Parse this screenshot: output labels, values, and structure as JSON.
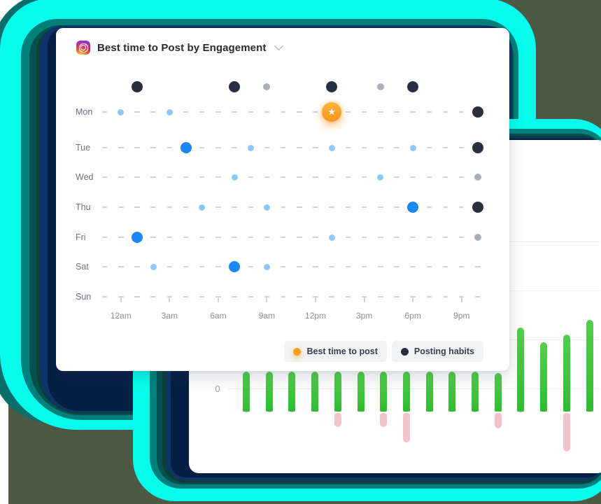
{
  "palette": {
    "page_backdrop": "#4C5A44",
    "glow_cyan": "#09FBEE",
    "glow_teal": "#00807C",
    "glow_dark_teal": "#05514F",
    "glow_dark_green": "#0C3F38",
    "glow_navy": "#10356A",
    "glow_deep_navy": "#081F44",
    "card_background": "#ffffff",
    "dot_light_blue": "#8FC7FA",
    "dot_bright_blue": "#1B87F5",
    "dot_dark_navy": "#272E3F",
    "dot_gray": "#A9B0B8",
    "dash_gray": "#CBD3DB",
    "star_orange": "#F7941D",
    "bar_green": "#3DC13C",
    "bar_pink": "#F3C3CD"
  },
  "main_card": {
    "header": {
      "icon": "instagram-icon",
      "title": "Best time to Post by Engagement",
      "dropdown_icon": "chevron-down-icon"
    },
    "legend": [
      {
        "icon": "orange-dot-icon",
        "icon_color": "#F9A21F",
        "label": "Best time to post"
      },
      {
        "icon": "navy-dot-icon",
        "icon_color": "#272E3F",
        "label": "Posting habits"
      }
    ]
  },
  "chart_data": [
    {
      "type": "scatter",
      "title": "Best time to Post by Engagement",
      "x_axis": "hour of day, 24 hourly slots",
      "y_axis": "day of week",
      "x_ticks": [
        "12am",
        "3am",
        "6am",
        "9am",
        "12pm",
        "3pm",
        "6pm",
        "9pm"
      ],
      "x_tick_slots": [
        1,
        4,
        7,
        10,
        13,
        16,
        19,
        22
      ],
      "slots_per_row": 24,
      "dot_types": {
        "light": "small light-blue engagement dot",
        "blue": "large bright-blue high-engagement dot",
        "dark": "large dark-navy posting-habit dot",
        "gray": "small gray posting-habit dot",
        "star": "orange star badge = best time to post"
      },
      "rows": [
        {
          "label": "",
          "name": "posting-habits-row",
          "dashes": false,
          "dots": [
            {
              "slot": 2,
              "type": "dark"
            },
            {
              "slot": 8,
              "type": "dark"
            },
            {
              "slot": 10,
              "type": "gray"
            },
            {
              "slot": 14,
              "type": "dark"
            },
            {
              "slot": 17,
              "type": "gray"
            },
            {
              "slot": 19,
              "type": "dark"
            }
          ]
        },
        {
          "label": "Mon",
          "dashes": true,
          "dots": [
            {
              "slot": 1,
              "type": "light"
            },
            {
              "slot": 4,
              "type": "light"
            },
            {
              "slot": 14,
              "type": "star"
            },
            {
              "slot": 23,
              "type": "dark"
            }
          ]
        },
        {
          "label": "Tue",
          "dashes": true,
          "dots": [
            {
              "slot": 5,
              "type": "blue"
            },
            {
              "slot": 9,
              "type": "light"
            },
            {
              "slot": 14,
              "type": "light"
            },
            {
              "slot": 19,
              "type": "light"
            },
            {
              "slot": 23,
              "type": "dark"
            }
          ]
        },
        {
          "label": "Wed",
          "dashes": true,
          "dots": [
            {
              "slot": 8,
              "type": "light"
            },
            {
              "slot": 17,
              "type": "light"
            },
            {
              "slot": 23,
              "type": "gray"
            }
          ]
        },
        {
          "label": "Thu",
          "dashes": true,
          "dots": [
            {
              "slot": 6,
              "type": "light"
            },
            {
              "slot": 10,
              "type": "light"
            },
            {
              "slot": 19,
              "type": "blue"
            },
            {
              "slot": 23,
              "type": "dark"
            }
          ]
        },
        {
          "label": "Fri",
          "dashes": true,
          "dots": [
            {
              "slot": 2,
              "type": "blue"
            },
            {
              "slot": 14,
              "type": "light"
            },
            {
              "slot": 23,
              "type": "gray"
            }
          ]
        },
        {
          "label": "Sat",
          "dashes": true,
          "dots": [
            {
              "slot": 3,
              "type": "light"
            },
            {
              "slot": 8,
              "type": "blue"
            },
            {
              "slot": 10,
              "type": "light"
            }
          ]
        },
        {
          "label": "Sun",
          "dashes": true,
          "dots": [],
          "ticks": [
            1,
            4,
            7,
            10,
            13,
            16,
            19,
            22
          ]
        }
      ]
    },
    {
      "type": "bar",
      "title": "",
      "baseline_label": "0",
      "ylabel": "",
      "grid": true,
      "gridline_count": 4,
      "bar_count": 16,
      "units": "pixels (axis unlabeled in source)",
      "series": [
        {
          "name": "positive-green",
          "color": "#3DC13C",
          "values": [
            57,
            57,
            57,
            57,
            57,
            57,
            57,
            57,
            57,
            57,
            57,
            55,
            120,
            99,
            110,
            131
          ],
          "note": "bars 1-11 are partially hidden behind the front card"
        },
        {
          "name": "negative-pink",
          "color": "#F3C3CD",
          "values": [
            0,
            0,
            0,
            0,
            20,
            0,
            20,
            42,
            0,
            0,
            0,
            22,
            0,
            0,
            55,
            0
          ]
        }
      ]
    }
  ]
}
